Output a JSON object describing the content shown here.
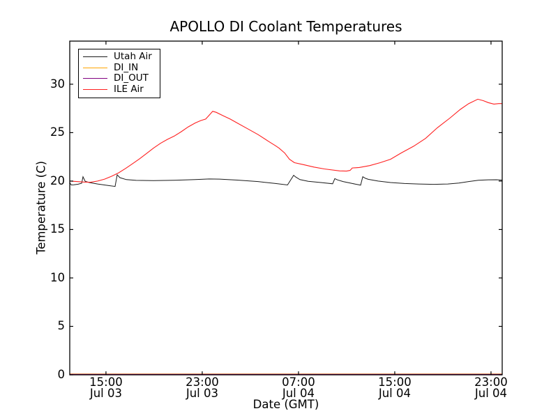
{
  "figure": {
    "title": "APOLLO DI Coolant Temperatures"
  },
  "chart_data": {
    "type": "line",
    "title": "APOLLO DI Coolant Temperatures",
    "xlabel": "Date (GMT)",
    "ylabel": "Temperature (C)",
    "x_axis_note": "x values are hours after Jul 03 12:00 GMT",
    "xlim": [
      0,
      35.94
    ],
    "ylim": [
      0,
      34.45
    ],
    "grid": false,
    "legend_position": "upper left",
    "background": "#ffffff",
    "axis_color": "#000000",
    "yticks": [
      0,
      5,
      10,
      15,
      20,
      25,
      30
    ],
    "xticks": [
      {
        "t": 3.01,
        "time": "15:00",
        "date": "Jul 03"
      },
      {
        "t": 11.01,
        "time": "23:00",
        "date": "Jul 03"
      },
      {
        "t": 19.01,
        "time": "07:00",
        "date": "Jul 04"
      },
      {
        "t": 27.01,
        "time": "15:00",
        "date": "Jul 04"
      },
      {
        "t": 35.01,
        "time": "23:00",
        "date": "Jul 04"
      }
    ],
    "series": [
      {
        "name": "Utah Air",
        "color": "#1a1a1a",
        "width": 1.0,
        "points": [
          [
            0.0,
            19.85
          ],
          [
            0.12,
            19.6
          ],
          [
            0.35,
            19.62
          ],
          [
            0.7,
            19.68
          ],
          [
            0.99,
            19.78
          ],
          [
            1.1,
            20.45
          ],
          [
            1.28,
            19.98
          ],
          [
            1.62,
            19.85
          ],
          [
            2.32,
            19.7
          ],
          [
            3.19,
            19.55
          ],
          [
            3.77,
            19.45
          ],
          [
            3.94,
            20.65
          ],
          [
            4.17,
            20.35
          ],
          [
            4.7,
            20.15
          ],
          [
            5.51,
            20.07
          ],
          [
            6.96,
            20.05
          ],
          [
            8.69,
            20.08
          ],
          [
            10.43,
            20.15
          ],
          [
            11.59,
            20.22
          ],
          [
            12.46,
            20.2
          ],
          [
            13.91,
            20.1
          ],
          [
            15.65,
            19.95
          ],
          [
            17.1,
            19.75
          ],
          [
            18.1,
            19.6
          ],
          [
            18.61,
            20.6
          ],
          [
            18.78,
            20.42
          ],
          [
            19.13,
            20.15
          ],
          [
            19.82,
            19.98
          ],
          [
            20.87,
            19.85
          ],
          [
            21.85,
            19.72
          ],
          [
            22.03,
            20.25
          ],
          [
            22.25,
            20.12
          ],
          [
            22.72,
            19.95
          ],
          [
            23.48,
            19.75
          ],
          [
            24.17,
            19.58
          ],
          [
            24.35,
            20.45
          ],
          [
            24.58,
            20.28
          ],
          [
            24.81,
            20.18
          ],
          [
            25.62,
            20.0
          ],
          [
            26.66,
            19.85
          ],
          [
            27.82,
            19.75
          ],
          [
            28.98,
            19.7
          ],
          [
            30.26,
            19.66
          ],
          [
            31.42,
            19.7
          ],
          [
            32.34,
            19.8
          ],
          [
            33.15,
            19.95
          ],
          [
            33.96,
            20.08
          ],
          [
            34.77,
            20.13
          ],
          [
            35.47,
            20.14
          ],
          [
            35.93,
            20.1
          ]
        ]
      },
      {
        "name": "DI_IN",
        "color": "#ffa500",
        "width": 1.2,
        "points": [
          [
            0.0,
            0.0
          ],
          [
            35.93,
            0.0
          ]
        ]
      },
      {
        "name": "DI_OUT",
        "color": "#800080",
        "width": 1.2,
        "points": [
          [
            0.0,
            0.0
          ],
          [
            35.93,
            0.0
          ]
        ]
      },
      {
        "name": "ILE Air",
        "color": "#ff1f1f",
        "width": 1.1,
        "points": [
          [
            0.0,
            20.0
          ],
          [
            0.58,
            19.95
          ],
          [
            1.16,
            19.9
          ],
          [
            1.74,
            19.88
          ],
          [
            2.32,
            20.0
          ],
          [
            2.9,
            20.2
          ],
          [
            3.48,
            20.5
          ],
          [
            4.06,
            20.85
          ],
          [
            4.64,
            21.3
          ],
          [
            5.22,
            21.8
          ],
          [
            5.8,
            22.3
          ],
          [
            6.38,
            22.85
          ],
          [
            6.96,
            23.4
          ],
          [
            7.54,
            23.9
          ],
          [
            8.11,
            24.3
          ],
          [
            8.69,
            24.65
          ],
          [
            9.27,
            25.1
          ],
          [
            9.85,
            25.6
          ],
          [
            10.43,
            26.0
          ],
          [
            10.9,
            26.25
          ],
          [
            11.3,
            26.4
          ],
          [
            11.59,
            26.8
          ],
          [
            11.88,
            27.2
          ],
          [
            12.17,
            27.1
          ],
          [
            12.75,
            26.75
          ],
          [
            13.33,
            26.4
          ],
          [
            13.91,
            26.0
          ],
          [
            14.78,
            25.4
          ],
          [
            15.65,
            24.8
          ],
          [
            16.52,
            24.1
          ],
          [
            17.1,
            23.65
          ],
          [
            17.39,
            23.4
          ],
          [
            17.86,
            22.9
          ],
          [
            18.26,
            22.25
          ],
          [
            18.67,
            21.9
          ],
          [
            19.42,
            21.7
          ],
          [
            20.29,
            21.45
          ],
          [
            21.16,
            21.25
          ],
          [
            22.43,
            21.05
          ],
          [
            23.01,
            21.03
          ],
          [
            23.3,
            21.1
          ],
          [
            23.48,
            21.35
          ],
          [
            24.06,
            21.4
          ],
          [
            24.93,
            21.6
          ],
          [
            25.8,
            21.9
          ],
          [
            26.66,
            22.25
          ],
          [
            27.54,
            22.9
          ],
          [
            28.58,
            23.6
          ],
          [
            29.57,
            24.4
          ],
          [
            30.55,
            25.5
          ],
          [
            31.59,
            26.5
          ],
          [
            32.46,
            27.4
          ],
          [
            33.16,
            28.0
          ],
          [
            33.91,
            28.45
          ],
          [
            34.37,
            28.3
          ],
          [
            34.78,
            28.1
          ],
          [
            35.25,
            27.95
          ],
          [
            35.65,
            28.0
          ],
          [
            35.93,
            28.0
          ]
        ]
      }
    ]
  }
}
